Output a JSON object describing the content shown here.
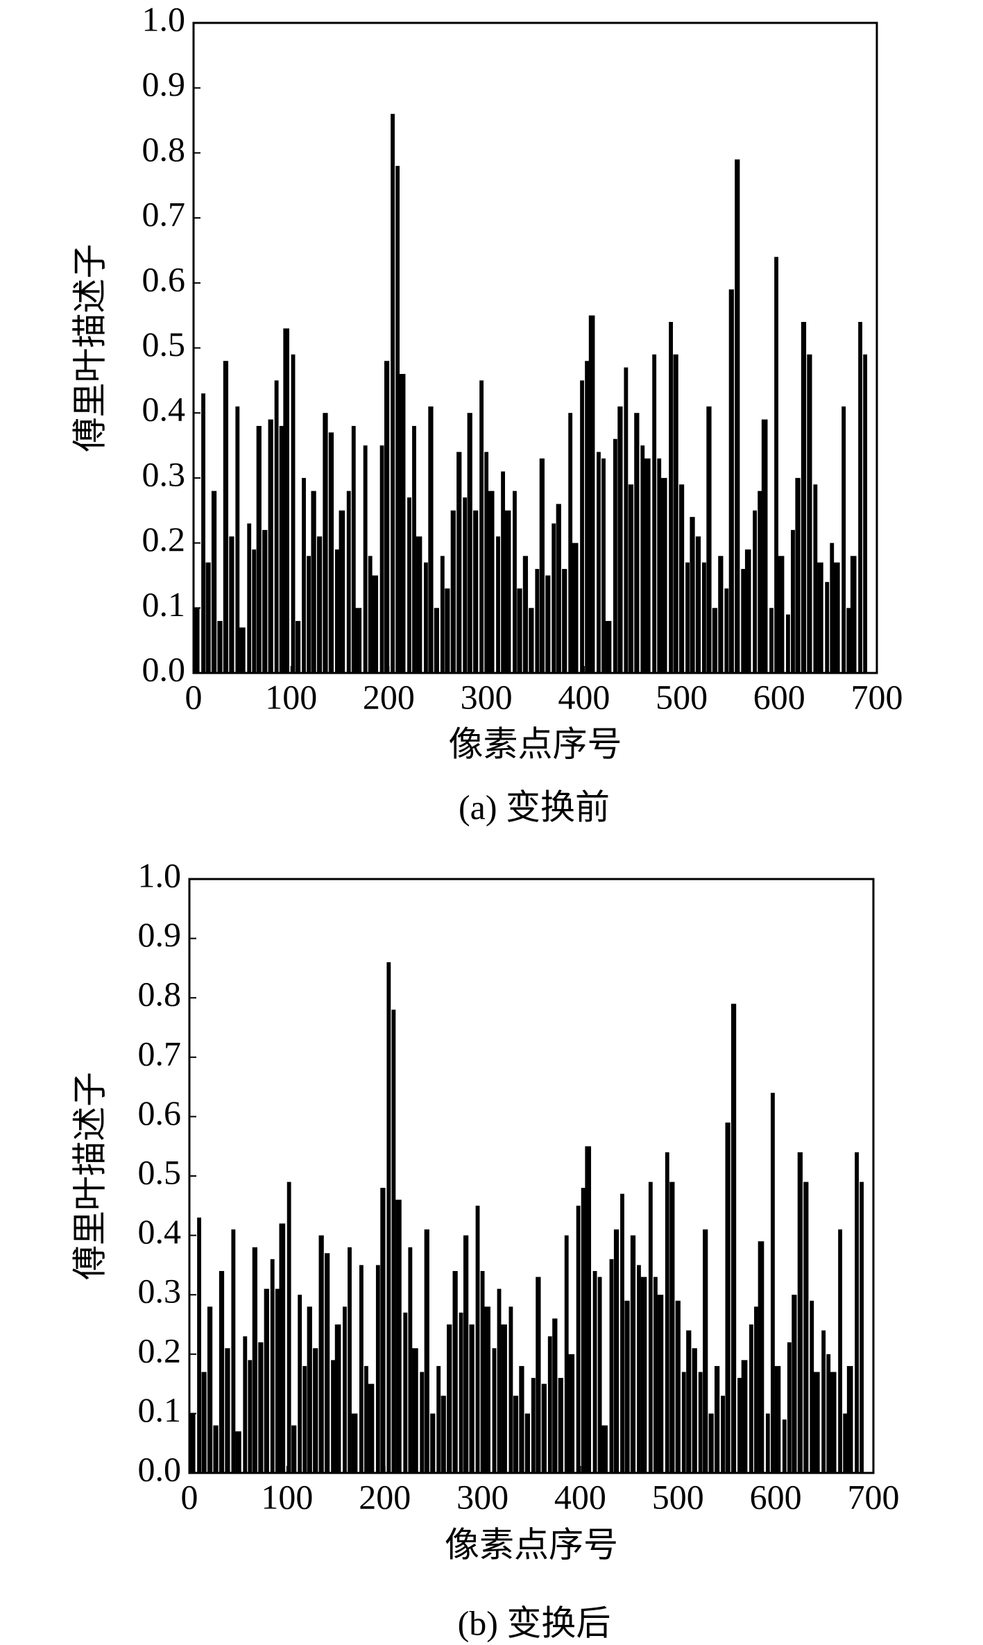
{
  "chart_data": [
    {
      "type": "bar",
      "caption": "(a) 变换前",
      "xlabel": "像素点序号",
      "ylabel": "傅里叶描述子",
      "color": "#000000",
      "x": [
        3,
        10,
        15,
        21,
        27,
        33,
        39,
        45,
        50,
        57,
        62,
        67,
        73,
        79,
        85,
        90,
        95,
        102,
        107,
        113,
        118,
        123,
        129,
        135,
        141,
        147,
        152,
        159,
        164,
        169,
        176,
        181,
        186,
        193,
        198,
        204,
        209,
        214,
        221,
        226,
        231,
        238,
        243,
        249,
        255,
        260,
        266,
        272,
        278,
        283,
        289,
        295,
        300,
        305,
        312,
        317,
        322,
        329,
        334,
        340,
        346,
        352,
        357,
        363,
        369,
        374,
        380,
        386,
        391,
        398,
        403,
        408,
        415,
        420,
        425,
        432,
        437,
        443,
        448,
        454,
        460,
        465,
        472,
        477,
        482,
        489,
        494,
        500,
        506,
        511,
        517,
        523,
        528,
        534,
        540,
        546,
        551,
        557,
        563,
        568,
        575,
        580,
        585,
        592,
        597,
        602,
        609,
        614,
        619,
        625,
        631,
        637,
        642,
        649,
        654,
        659,
        666,
        671,
        676,
        683,
        688
      ],
      "values": [
        0.1,
        0.43,
        0.17,
        0.28,
        0.08,
        0.48,
        0.21,
        0.41,
        0.07,
        0.23,
        0.19,
        0.38,
        0.22,
        0.39,
        0.45,
        0.38,
        0.53,
        0.49,
        0.08,
        0.3,
        0.18,
        0.28,
        0.21,
        0.4,
        0.37,
        0.19,
        0.25,
        0.28,
        0.38,
        0.1,
        0.35,
        0.18,
        0.15,
        0.35,
        0.48,
        0.86,
        0.78,
        0.46,
        0.27,
        0.38,
        0.21,
        0.17,
        0.41,
        0.1,
        0.18,
        0.13,
        0.25,
        0.34,
        0.27,
        0.4,
        0.25,
        0.45,
        0.34,
        0.28,
        0.21,
        0.31,
        0.25,
        0.28,
        0.13,
        0.18,
        0.1,
        0.16,
        0.33,
        0.15,
        0.23,
        0.26,
        0.16,
        0.4,
        0.2,
        0.45,
        0.48,
        0.55,
        0.34,
        0.33,
        0.08,
        0.36,
        0.41,
        0.47,
        0.29,
        0.4,
        0.35,
        0.33,
        0.49,
        0.33,
        0.3,
        0.54,
        0.49,
        0.29,
        0.17,
        0.24,
        0.21,
        0.17,
        0.41,
        0.1,
        0.18,
        0.13,
        0.59,
        0.79,
        0.16,
        0.19,
        0.25,
        0.28,
        0.39,
        0.1,
        0.64,
        0.18,
        0.09,
        0.22,
        0.3,
        0.54,
        0.49,
        0.29,
        0.17,
        0.14,
        0.2,
        0.17,
        0.41,
        0.1,
        0.18,
        0.54,
        0.49
      ],
      "xlim": [
        0,
        700
      ],
      "xticks": [
        0,
        100,
        200,
        300,
        400,
        500,
        600,
        700
      ],
      "ylim": [
        0,
        1
      ],
      "yticks": [
        {
          "value": 0,
          "label": "0.0"
        },
        0.1,
        0.2,
        0.3,
        0.4,
        0.5,
        0.6,
        0.7,
        0.8,
        0.9,
        {
          "value": 1,
          "label": "1.0"
        }
      ]
    },
    {
      "type": "bar",
      "caption": "(b) 变换后",
      "xlabel": "像素点序号",
      "ylabel": "傅里叶描述子",
      "color": "#000000",
      "x": [
        3,
        10,
        15,
        21,
        27,
        33,
        39,
        45,
        50,
        57,
        62,
        67,
        73,
        79,
        85,
        90,
        95,
        102,
        107,
        113,
        118,
        123,
        129,
        135,
        141,
        147,
        152,
        159,
        164,
        169,
        176,
        181,
        186,
        193,
        198,
        204,
        209,
        214,
        221,
        226,
        231,
        238,
        243,
        249,
        255,
        260,
        266,
        272,
        278,
        283,
        289,
        295,
        300,
        305,
        312,
        317,
        322,
        329,
        334,
        340,
        346,
        352,
        357,
        363,
        369,
        374,
        380,
        386,
        391,
        398,
        403,
        408,
        415,
        420,
        425,
        432,
        437,
        443,
        448,
        454,
        460,
        465,
        472,
        477,
        482,
        489,
        494,
        500,
        506,
        511,
        517,
        523,
        528,
        534,
        540,
        546,
        551,
        557,
        563,
        568,
        575,
        580,
        585,
        592,
        597,
        602,
        609,
        614,
        619,
        625,
        631,
        637,
        642,
        649,
        654,
        659,
        666,
        671,
        676,
        683,
        688
      ],
      "values": [
        0.1,
        0.43,
        0.17,
        0.28,
        0.08,
        0.34,
        0.21,
        0.41,
        0.07,
        0.23,
        0.19,
        0.38,
        0.22,
        0.31,
        0.36,
        0.31,
        0.42,
        0.49,
        0.08,
        0.3,
        0.18,
        0.28,
        0.21,
        0.4,
        0.37,
        0.19,
        0.25,
        0.28,
        0.38,
        0.1,
        0.35,
        0.18,
        0.15,
        0.35,
        0.48,
        0.86,
        0.78,
        0.46,
        0.27,
        0.38,
        0.21,
        0.17,
        0.41,
        0.1,
        0.18,
        0.13,
        0.25,
        0.34,
        0.27,
        0.4,
        0.25,
        0.45,
        0.34,
        0.28,
        0.21,
        0.31,
        0.25,
        0.28,
        0.13,
        0.18,
        0.1,
        0.16,
        0.33,
        0.15,
        0.23,
        0.26,
        0.16,
        0.4,
        0.2,
        0.45,
        0.48,
        0.55,
        0.34,
        0.33,
        0.08,
        0.36,
        0.41,
        0.47,
        0.29,
        0.4,
        0.35,
        0.33,
        0.49,
        0.33,
        0.3,
        0.54,
        0.49,
        0.29,
        0.17,
        0.24,
        0.21,
        0.17,
        0.41,
        0.1,
        0.18,
        0.13,
        0.59,
        0.79,
        0.16,
        0.19,
        0.25,
        0.28,
        0.39,
        0.1,
        0.64,
        0.18,
        0.09,
        0.22,
        0.3,
        0.54,
        0.49,
        0.29,
        0.17,
        0.24,
        0.2,
        0.17,
        0.41,
        0.1,
        0.18,
        0.54,
        0.49
      ],
      "xlim": [
        0,
        700
      ],
      "xticks": [
        0,
        100,
        200,
        300,
        400,
        500,
        600,
        700
      ],
      "ylim": [
        0,
        1
      ],
      "yticks": [
        {
          "value": 0,
          "label": "0.0"
        },
        0.1,
        0.2,
        0.3,
        0.4,
        0.5,
        0.6,
        0.7,
        0.8,
        0.9,
        {
          "value": 1,
          "label": "1.0"
        }
      ]
    }
  ]
}
